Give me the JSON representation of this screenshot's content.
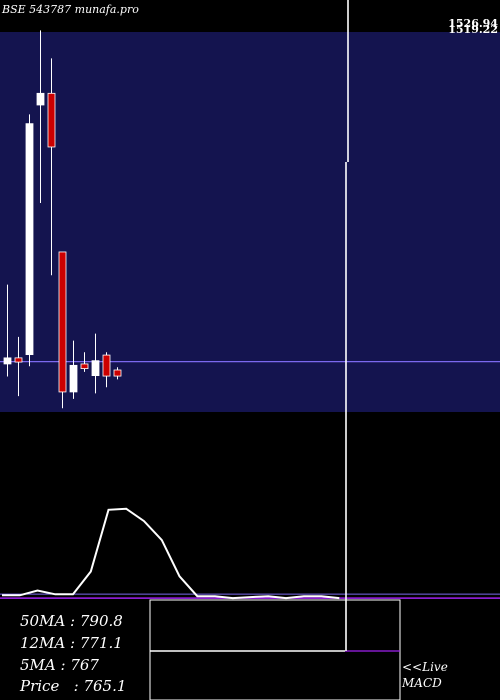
{
  "header": {
    "title": "BSE 543787 munafa.pro"
  },
  "price_labels": [
    "1526.94",
    "1519.22"
  ],
  "ma_panel": {
    "rows": [
      {
        "label": "50MA",
        "value": "790.8"
      },
      {
        "label": "12MA",
        "value": "771.1"
      },
      {
        "label": "5MA",
        "value": "767"
      },
      {
        "label": "Price  ",
        "value": "765.1"
      }
    ]
  },
  "live_link": {
    "line1": "<<Live",
    "line2": "MACD"
  },
  "colors": {
    "background": "#000000",
    "chart_panel": "#14144f",
    "up_candle": "#ffffff",
    "down_candle": "#cc0000",
    "ma_line": "#7b68ee",
    "macd_line": "#ffffff",
    "signal_line": "#a020f0"
  },
  "chart_data": {
    "type": "candlestick",
    "title": "BSE 543787 munafa.pro",
    "candles": [
      {
        "open": 765,
        "high": 935,
        "low": 738,
        "close": 778,
        "dir": "up"
      },
      {
        "open": 778,
        "high": 823,
        "low": 696,
        "close": 769,
        "dir": "down"
      },
      {
        "open": 785,
        "high": 1300,
        "low": 760,
        "close": 1280,
        "dir": "up"
      },
      {
        "open": 1320,
        "high": 1480,
        "low": 1110,
        "close": 1345,
        "dir": "up"
      },
      {
        "open": 1345,
        "high": 1420,
        "low": 955,
        "close": 1230,
        "dir": "down"
      },
      {
        "open": 1005,
        "high": 1005,
        "low": 670,
        "close": 705,
        "dir": "down"
      },
      {
        "open": 705,
        "high": 815,
        "low": 690,
        "close": 762,
        "dir": "up"
      },
      {
        "open": 765,
        "high": 790,
        "low": 748,
        "close": 755,
        "dir": "down"
      },
      {
        "open": 740,
        "high": 830,
        "low": 702,
        "close": 772,
        "dir": "up"
      },
      {
        "open": 784,
        "high": 790,
        "low": 715,
        "close": 739,
        "dir": "down"
      },
      {
        "open": 752,
        "high": 758,
        "low": 732,
        "close": 739,
        "dir": "down"
      }
    ],
    "ma_value": 770,
    "macd": [
      0.05,
      0.05,
      0.1,
      0.06,
      0.06,
      0.3,
      0.95,
      0.96,
      0.83,
      0.63,
      0.25,
      0.04,
      0.04,
      0.02,
      0.03,
      0.04,
      0.02,
      0.04,
      0.04,
      0.02
    ],
    "signal": 0.02,
    "ylim": [
      662,
      1545
    ]
  }
}
